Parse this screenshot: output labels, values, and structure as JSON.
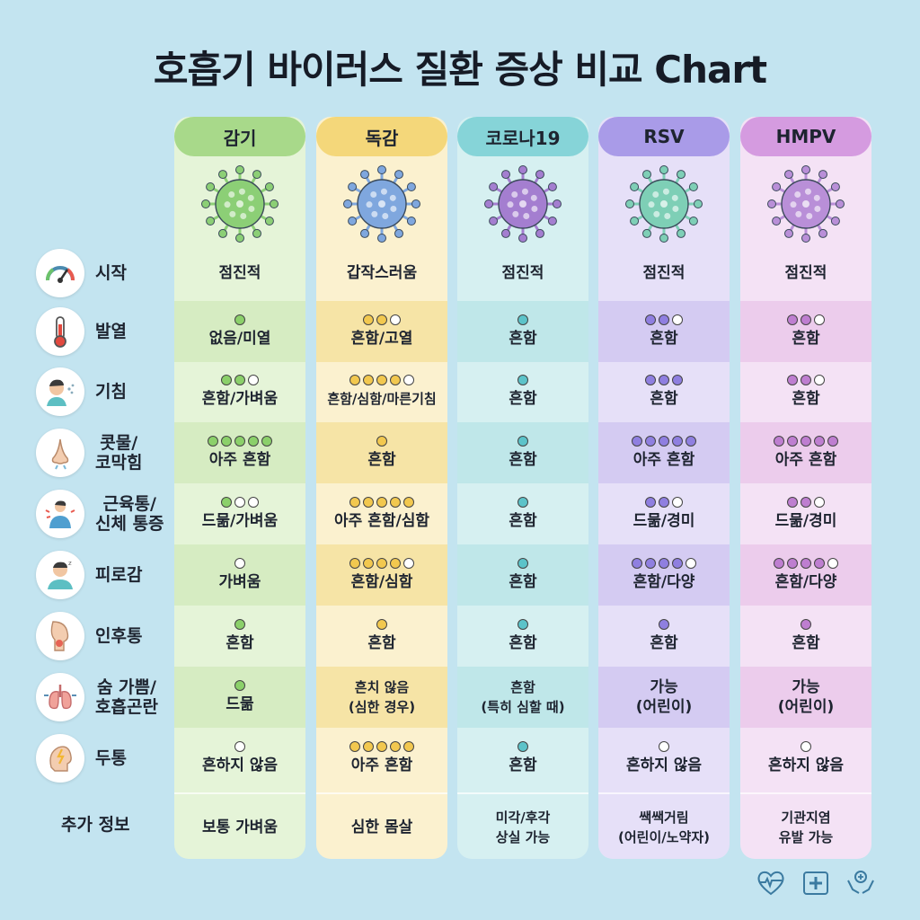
{
  "title": "호흡기 바이러스 질환 증상 비교 Chart",
  "rows": [
    {
      "label": "시작",
      "icon": "gauge-icon"
    },
    {
      "label": "발열",
      "icon": "thermometer-icon"
    },
    {
      "label": "기침",
      "icon": "cough-person-icon"
    },
    {
      "label": "콧물/\n코막힘",
      "icon": "nose-icon"
    },
    {
      "label": "근육통/\n신체 통증",
      "icon": "body-ache-icon"
    },
    {
      "label": "피로감",
      "icon": "tired-person-icon"
    },
    {
      "label": "인후통",
      "icon": "throat-icon"
    },
    {
      "label": "숨 가쁨/\n호흡곤란",
      "icon": "lungs-icon"
    },
    {
      "label": "두통",
      "icon": "headache-icon"
    }
  ],
  "extra_label": "추가 정보",
  "columns": [
    {
      "name": "감기",
      "header_color": "#a8d98a",
      "body_color": "#e5f4d8",
      "alt_color": "#d6ecc2",
      "dot_color": "#8bd06a",
      "virus_color": "#8ccf76",
      "cells": [
        {
          "text": "점진적",
          "dots": 0,
          "filled": 0
        },
        {
          "text": "없음/미열",
          "dots": 1,
          "filled": 1
        },
        {
          "text": "흔함/가벼움",
          "dots": 3,
          "filled": 2
        },
        {
          "text": "아주 흔함",
          "dots": 5,
          "filled": 5
        },
        {
          "text": "드묾/가벼움",
          "dots": 3,
          "filled": 1
        },
        {
          "text": "가벼움",
          "dots": 1,
          "filled": 0
        },
        {
          "text": "흔함",
          "dots": 1,
          "filled": 1
        },
        {
          "text": "드묾",
          "dots": 1,
          "filled": 1
        },
        {
          "text": "흔하지 않음",
          "dots": 1,
          "filled": 0
        }
      ],
      "extra": "보통 가벼움"
    },
    {
      "name": "독감",
      "header_color": "#f4d77a",
      "body_color": "#fbf1cf",
      "alt_color": "#f6e4a6",
      "dot_color": "#f2c84f",
      "virus_color": "#7fa7de",
      "cells": [
        {
          "text": "갑작스러움",
          "dots": 0,
          "filled": 0
        },
        {
          "text": "흔함/고열",
          "dots": 3,
          "filled": 2
        },
        {
          "text": "흔함/심함/마른기침",
          "dots": 5,
          "filled": 4
        },
        {
          "text": "흔함",
          "dots": 1,
          "filled": 1
        },
        {
          "text": "아주 흔함/심함",
          "dots": 5,
          "filled": 5
        },
        {
          "text": "흔함/심함",
          "dots": 5,
          "filled": 4
        },
        {
          "text": "흔함",
          "dots": 1,
          "filled": 1
        },
        {
          "text": "흔치 않음\n(심한 경우)",
          "dots": 0,
          "filled": 0
        },
        {
          "text": "아주 흔함",
          "dots": 5,
          "filled": 5
        }
      ],
      "extra": "심한 몸살"
    },
    {
      "name": "코로나19",
      "header_color": "#86d4d8",
      "body_color": "#d6f0f1",
      "alt_color": "#bfe7e9",
      "dot_color": "#5cc3c9",
      "virus_color": "#a47ed0",
      "cells": [
        {
          "text": "점진적",
          "dots": 0,
          "filled": 0
        },
        {
          "text": "흔함",
          "dots": 1,
          "filled": 1
        },
        {
          "text": "흔함",
          "dots": 1,
          "filled": 1
        },
        {
          "text": "흔함",
          "dots": 1,
          "filled": 1
        },
        {
          "text": "흔함",
          "dots": 1,
          "filled": 1
        },
        {
          "text": "흔함",
          "dots": 1,
          "filled": 1
        },
        {
          "text": "흔함",
          "dots": 1,
          "filled": 1
        },
        {
          "text": "흔함\n(특히 심할 때)",
          "dots": 0,
          "filled": 0
        },
        {
          "text": "흔함",
          "dots": 1,
          "filled": 1
        }
      ],
      "extra": "미각/후각\n상실 가능"
    },
    {
      "name": "RSV",
      "header_color": "#a99be8",
      "body_color": "#e6e0f8",
      "alt_color": "#d4cbf2",
      "dot_color": "#8f7fe0",
      "virus_color": "#7ecfb6",
      "cells": [
        {
          "text": "점진적",
          "dots": 0,
          "filled": 0
        },
        {
          "text": "흔함",
          "dots": 3,
          "filled": 2
        },
        {
          "text": "흔함",
          "dots": 3,
          "filled": 3
        },
        {
          "text": "아주 흔함",
          "dots": 5,
          "filled": 5
        },
        {
          "text": "드묾/경미",
          "dots": 3,
          "filled": 2
        },
        {
          "text": "흔함/다양",
          "dots": 5,
          "filled": 4
        },
        {
          "text": "흔함",
          "dots": 1,
          "filled": 1
        },
        {
          "text": "가능\n(어린이)",
          "dots": 0,
          "filled": 0
        },
        {
          "text": "흔하지 않음",
          "dots": 1,
          "filled": 0
        }
      ],
      "extra": "쌕쌕거림\n(어린이/노약자)"
    },
    {
      "name": "HMPV",
      "header_color": "#d59be0",
      "body_color": "#f4e2f5",
      "alt_color": "#ecccec",
      "dot_color": "#be7ed0",
      "virus_color": "#b98fd8",
      "cells": [
        {
          "text": "점진적",
          "dots": 0,
          "filled": 0
        },
        {
          "text": "흔함",
          "dots": 3,
          "filled": 2
        },
        {
          "text": "흔함",
          "dots": 3,
          "filled": 2
        },
        {
          "text": "아주 흔함",
          "dots": 5,
          "filled": 5
        },
        {
          "text": "드묾/경미",
          "dots": 3,
          "filled": 2
        },
        {
          "text": "흔함/다양",
          "dots": 5,
          "filled": 4
        },
        {
          "text": "흔함",
          "dots": 1,
          "filled": 1
        },
        {
          "text": "가능\n(어린이)",
          "dots": 0,
          "filled": 0
        },
        {
          "text": "흔하지 않음",
          "dots": 1,
          "filled": 0
        }
      ],
      "extra": "기관지염\n유발 가능"
    }
  ],
  "footer_icons": [
    "heart-pulse-icon",
    "medical-kit-icon",
    "care-hands-icon"
  ]
}
